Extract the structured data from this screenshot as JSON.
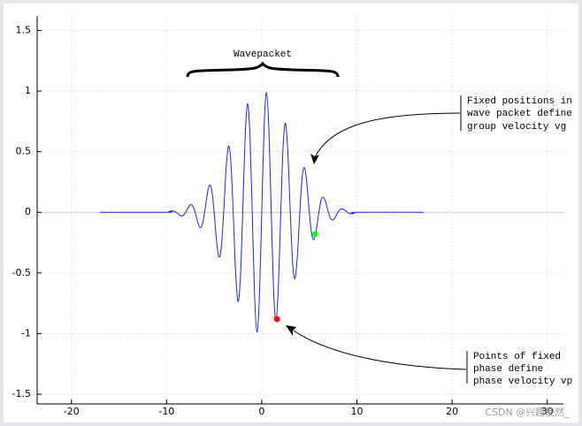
{
  "chart_data": {
    "type": "line",
    "xlim": [
      -23.6,
      31.7
    ],
    "ylim": [
      -1.58,
      1.62
    ],
    "xticks": [
      -20,
      -10,
      0,
      10,
      20,
      30
    ],
    "yticks": [
      -1.5,
      -1,
      -0.5,
      0,
      0.5,
      1,
      1.5
    ],
    "grid": true,
    "curve": {
      "color": "#2424e8",
      "x": [
        -17,
        -10,
        -9.75,
        -9.5,
        -9.25,
        -9,
        -8.75,
        -8.5,
        -8.25,
        -8,
        -7.75,
        -7.5,
        -7.25,
        -7,
        -6.75,
        -6.5,
        -6.25,
        -6,
        -5.75,
        -5.5,
        -5.25,
        -5,
        -4.75,
        -4.5,
        -4.25,
        -4,
        -3.75,
        -3.5,
        -3.25,
        -3,
        -2.75,
        -2.5,
        -2.25,
        -2,
        -1.75,
        -1.5,
        -1.25,
        -1,
        -0.75,
        -0.5,
        -0.25,
        0,
        0.25,
        0.5,
        0.75,
        1,
        1.25,
        1.5,
        1.75,
        2,
        2.25,
        2.5,
        2.75,
        3,
        3.25,
        3.5,
        3.75,
        4,
        4.25,
        4.5,
        4.75,
        5,
        5.25,
        5.5,
        5.75,
        6,
        6.25,
        6.5,
        6.75,
        7,
        7.25,
        7.5,
        7.75,
        8,
        8.25,
        8.5,
        8.75,
        9,
        9.25,
        9.5,
        9.75,
        10,
        17
      ],
      "values": [
        0,
        0,
        0.007,
        0.012,
        0.01,
        0,
        -0.016,
        -0.028,
        -0.025,
        0,
        0.036,
        0.062,
        0.053,
        0,
        -0.075,
        -0.124,
        -0.103,
        0,
        0.138,
        0.224,
        0.181,
        0,
        -0.232,
        -0.368,
        -0.29,
        0,
        0.353,
        0.546,
        0.42,
        0,
        -0.487,
        -0.734,
        -0.551,
        0,
        0.608,
        0.895,
        0.655,
        0,
        -0.688,
        -0.988,
        -0.705,
        0,
        0.705,
        0.988,
        0.688,
        0,
        -0.655,
        -0.895,
        -0.608,
        0,
        0.551,
        0.734,
        0.487,
        0,
        -0.42,
        -0.546,
        -0.353,
        0,
        0.29,
        0.368,
        0.232,
        0,
        -0.181,
        -0.224,
        -0.138,
        0,
        0.103,
        0.124,
        0.075,
        0,
        -0.053,
        -0.062,
        -0.036,
        0,
        0.025,
        0.028,
        0.016,
        0,
        -0.01,
        -0.012,
        -0.007,
        0,
        0
      ]
    },
    "points": [
      {
        "x": 5.6,
        "y": -0.18,
        "color": "#22ee22"
      },
      {
        "x": 1.6,
        "y": -0.88,
        "color": "#ff1010"
      }
    ],
    "annotations": {
      "wavepacket": "Wavepacket",
      "group": [
        "Fixed positions in",
        "wave packet define",
        "group velocity vg"
      ],
      "phase": [
        "Points of fixed",
        "phase define",
        "phase velocity vp"
      ]
    },
    "watermark": "CSDN @兴趣使然_"
  }
}
